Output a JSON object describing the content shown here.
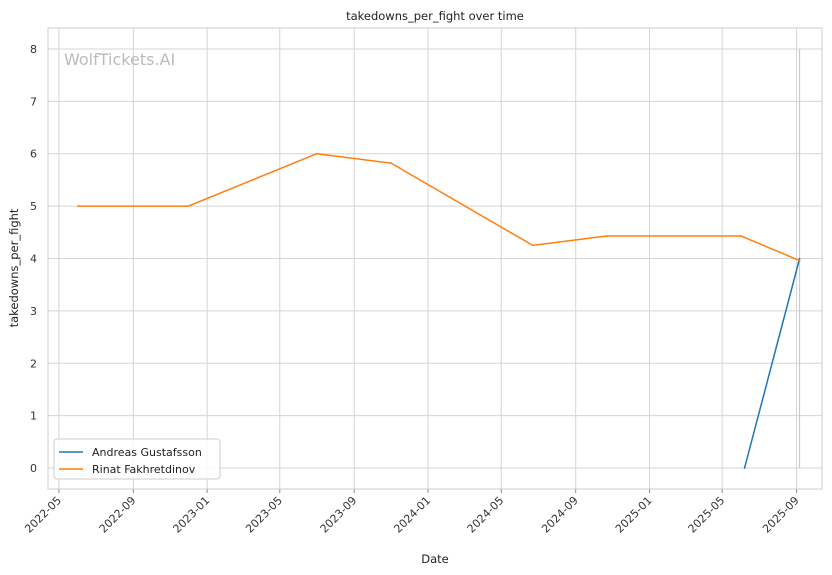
{
  "chart_data": {
    "type": "line",
    "title": "takedowns_per_fight over time",
    "xlabel": "Date",
    "ylabel": "takedowns_per_fight",
    "watermark": "WolfTickets.AI",
    "xlim": [
      "2022-04-13",
      "2025-10-13"
    ],
    "ylim": [
      -0.4,
      8.4
    ],
    "x_ticks": [
      "2022-05",
      "2022-09",
      "2023-01",
      "2023-05",
      "2023-09",
      "2024-01",
      "2024-05",
      "2024-09",
      "2025-01",
      "2025-05",
      "2025-09"
    ],
    "y_ticks": [
      0,
      1,
      2,
      3,
      4,
      5,
      6,
      7,
      8
    ],
    "grid": true,
    "legend_position": "lower-left",
    "series": [
      {
        "name": "Andreas Gustafsson",
        "color": "#1f77b4",
        "points": [
          {
            "x": "2025-06-07",
            "y": 0
          },
          {
            "x": "2025-09-06",
            "y": 4
          }
        ]
      },
      {
        "name": "Rinat Fakhretdinov",
        "color": "#ff7f0e",
        "points": [
          {
            "x": "2022-06-01",
            "y": 5
          },
          {
            "x": "2022-12-01",
            "y": 5
          },
          {
            "x": "2023-07-01",
            "y": 6
          },
          {
            "x": "2023-11-01",
            "y": 5.82
          },
          {
            "x": "2024-06-22",
            "y": 4.25
          },
          {
            "x": "2024-10-22",
            "y": 4.43
          },
          {
            "x": "2025-06-01",
            "y": 4.43
          },
          {
            "x": "2025-09-06",
            "y": 3.96
          }
        ]
      }
    ],
    "vline": {
      "x": "2025-09-06",
      "color": "#aec7e8"
    }
  }
}
